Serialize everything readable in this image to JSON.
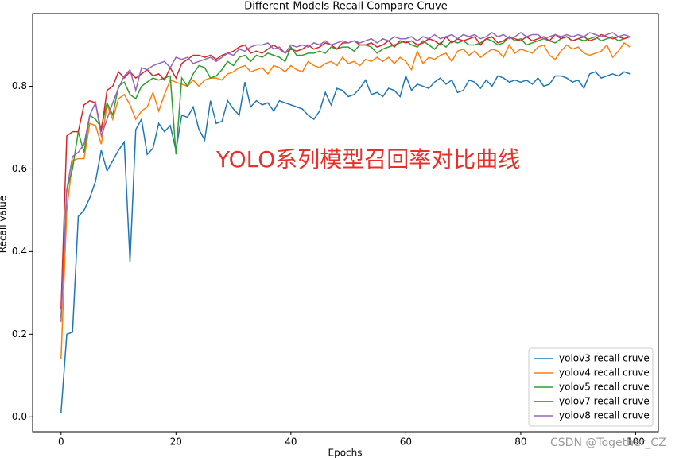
{
  "chart_data": {
    "type": "line",
    "title": "Different Models Recall Compare Cruve",
    "xlabel": "Epochs",
    "ylabel": "Recall value",
    "annotation": "YOLO系列模型召回率对比曲线",
    "watermark": "CSDN @Together_CZ",
    "legend": "lower right",
    "grid": false,
    "xlim": [
      -4.95,
      103.95
    ],
    "ylim": [
      -0.036,
      0.976
    ],
    "xticks": [
      0,
      20,
      40,
      60,
      80,
      100
    ],
    "yticks": [
      {
        "value": 0,
        "label": "0.0"
      },
      0.2,
      0.4,
      0.6,
      0.8
    ],
    "x": [
      0,
      1,
      2,
      3,
      4,
      5,
      6,
      7,
      8,
      9,
      10,
      11,
      12,
      13,
      14,
      15,
      16,
      17,
      18,
      19,
      20,
      21,
      22,
      23,
      24,
      25,
      26,
      27,
      28,
      29,
      30,
      31,
      32,
      33,
      34,
      35,
      36,
      37,
      38,
      39,
      40,
      41,
      42,
      43,
      44,
      45,
      46,
      47,
      48,
      49,
      50,
      51,
      52,
      53,
      54,
      55,
      56,
      57,
      58,
      59,
      60,
      61,
      62,
      63,
      64,
      65,
      66,
      67,
      68,
      69,
      70,
      71,
      72,
      73,
      74,
      75,
      76,
      77,
      78,
      79,
      80,
      81,
      82,
      83,
      84,
      85,
      86,
      87,
      88,
      89,
      90,
      91,
      92,
      93,
      94,
      95,
      96,
      97,
      98,
      99
    ],
    "series": [
      {
        "name": "yolov3 recall cruve",
        "color": "#1f77b4",
        "values": [
          0.01,
          0.2,
          0.205,
          0.485,
          0.5,
          0.53,
          0.57,
          0.645,
          0.595,
          0.62,
          0.645,
          0.665,
          0.375,
          0.695,
          0.72,
          0.635,
          0.65,
          0.71,
          0.69,
          0.705,
          0.645,
          0.73,
          0.725,
          0.75,
          0.695,
          0.67,
          0.765,
          0.71,
          0.715,
          0.765,
          0.745,
          0.73,
          0.81,
          0.75,
          0.765,
          0.755,
          0.76,
          0.74,
          0.765,
          0.76,
          0.755,
          0.75,
          0.745,
          0.73,
          0.72,
          0.74,
          0.785,
          0.755,
          0.795,
          0.79,
          0.775,
          0.78,
          0.795,
          0.815,
          0.78,
          0.785,
          0.775,
          0.795,
          0.79,
          0.775,
          0.825,
          0.79,
          0.805,
          0.8,
          0.795,
          0.81,
          0.82,
          0.805,
          0.815,
          0.785,
          0.79,
          0.815,
          0.81,
          0.795,
          0.815,
          0.8,
          0.825,
          0.82,
          0.81,
          0.815,
          0.81,
          0.815,
          0.805,
          0.82,
          0.8,
          0.805,
          0.825,
          0.825,
          0.82,
          0.81,
          0.815,
          0.795,
          0.83,
          0.835,
          0.82,
          0.825,
          0.83,
          0.825,
          0.835,
          0.83
        ]
      },
      {
        "name": "yolov4 recall cruve",
        "color": "#ff7f0e",
        "values": [
          0.14,
          0.5,
          0.62,
          0.625,
          0.625,
          0.71,
          0.705,
          0.66,
          0.755,
          0.72,
          0.77,
          0.78,
          0.755,
          0.72,
          0.74,
          0.75,
          0.785,
          0.74,
          0.78,
          0.815,
          0.81,
          0.805,
          0.8,
          0.815,
          0.8,
          0.815,
          0.82,
          0.82,
          0.815,
          0.83,
          0.835,
          0.845,
          0.85,
          0.835,
          0.84,
          0.845,
          0.83,
          0.85,
          0.845,
          0.835,
          0.85,
          0.84,
          0.835,
          0.86,
          0.85,
          0.845,
          0.855,
          0.86,
          0.85,
          0.87,
          0.855,
          0.86,
          0.85,
          0.865,
          0.86,
          0.87,
          0.86,
          0.87,
          0.855,
          0.87,
          0.86,
          0.84,
          0.885,
          0.855,
          0.87,
          0.865,
          0.875,
          0.88,
          0.86,
          0.885,
          0.89,
          0.875,
          0.885,
          0.87,
          0.88,
          0.89,
          0.885,
          0.87,
          0.9,
          0.88,
          0.89,
          0.885,
          0.88,
          0.895,
          0.9,
          0.875,
          0.865,
          0.885,
          0.9,
          0.89,
          0.895,
          0.88,
          0.875,
          0.88,
          0.885,
          0.9,
          0.87,
          0.885,
          0.905,
          0.895
        ]
      },
      {
        "name": "yolov5 recall cruve",
        "color": "#2ca02c",
        "values": [
          0.24,
          0.55,
          0.6,
          0.69,
          0.64,
          0.73,
          0.72,
          0.7,
          0.76,
          0.73,
          0.8,
          0.81,
          0.78,
          0.77,
          0.8,
          0.81,
          0.82,
          0.815,
          0.82,
          0.825,
          0.635,
          0.82,
          0.8,
          0.83,
          0.85,
          0.845,
          0.82,
          0.825,
          0.84,
          0.86,
          0.85,
          0.87,
          0.875,
          0.86,
          0.875,
          0.87,
          0.88,
          0.875,
          0.87,
          0.86,
          0.895,
          0.875,
          0.875,
          0.88,
          0.88,
          0.885,
          0.88,
          0.895,
          0.89,
          0.895,
          0.895,
          0.885,
          0.9,
          0.9,
          0.895,
          0.88,
          0.89,
          0.895,
          0.9,
          0.905,
          0.91,
          0.9,
          0.895,
          0.91,
          0.9,
          0.89,
          0.905,
          0.895,
          0.91,
          0.905,
          0.91,
          0.9,
          0.9,
          0.905,
          0.915,
          0.91,
          0.9,
          0.905,
          0.92,
          0.91,
          0.915,
          0.9,
          0.905,
          0.91,
          0.915,
          0.91,
          0.905,
          0.915,
          0.92,
          0.91,
          0.915,
          0.91,
          0.915,
          0.92,
          0.91,
          0.915,
          0.92,
          0.91,
          0.915,
          0.92
        ]
      },
      {
        "name": "yolov7 recall cruve",
        "color": "#d62728",
        "values": [
          0.26,
          0.68,
          0.69,
          0.69,
          0.755,
          0.765,
          0.76,
          0.69,
          0.79,
          0.8,
          0.835,
          0.82,
          0.835,
          0.82,
          0.83,
          0.84,
          0.825,
          0.83,
          0.815,
          0.845,
          0.82,
          0.855,
          0.865,
          0.875,
          0.875,
          0.87,
          0.875,
          0.865,
          0.875,
          0.88,
          0.885,
          0.895,
          0.9,
          0.88,
          0.885,
          0.88,
          0.89,
          0.9,
          0.89,
          0.88,
          0.89,
          0.885,
          0.89,
          0.9,
          0.89,
          0.895,
          0.905,
          0.9,
          0.89,
          0.905,
          0.905,
          0.91,
          0.9,
          0.9,
          0.905,
          0.895,
          0.9,
          0.91,
          0.895,
          0.91,
          0.905,
          0.91,
          0.9,
          0.905,
          0.915,
          0.91,
          0.9,
          0.92,
          0.905,
          0.915,
          0.91,
          0.915,
          0.92,
          0.9,
          0.915,
          0.92,
          0.905,
          0.91,
          0.92,
          0.915,
          0.91,
          0.92,
          0.91,
          0.915,
          0.92,
          0.91,
          0.925,
          0.915,
          0.92,
          0.91,
          0.915,
          0.92,
          0.91,
          0.915,
          0.925,
          0.92,
          0.915,
          0.92,
          0.915,
          0.92
        ]
      },
      {
        "name": "yolov8 recall cruve",
        "color": "#9467bd",
        "values": [
          0.23,
          0.55,
          0.63,
          0.64,
          0.66,
          0.73,
          0.76,
          0.68,
          0.72,
          0.76,
          0.795,
          0.825,
          0.84,
          0.79,
          0.845,
          0.84,
          0.85,
          0.855,
          0.86,
          0.845,
          0.87,
          0.865,
          0.87,
          0.855,
          0.86,
          0.865,
          0.87,
          0.86,
          0.87,
          0.88,
          0.875,
          0.89,
          0.885,
          0.895,
          0.9,
          0.9,
          0.905,
          0.89,
          0.895,
          0.88,
          0.9,
          0.895,
          0.9,
          0.895,
          0.905,
          0.9,
          0.91,
          0.9,
          0.905,
          0.91,
          0.905,
          0.91,
          0.905,
          0.91,
          0.915,
          0.905,
          0.915,
          0.91,
          0.92,
          0.915,
          0.915,
          0.92,
          0.91,
          0.92,
          0.915,
          0.925,
          0.915,
          0.92,
          0.925,
          0.915,
          0.925,
          0.92,
          0.925,
          0.915,
          0.92,
          0.93,
          0.92,
          0.925,
          0.915,
          0.92,
          0.93,
          0.92,
          0.925,
          0.925,
          0.915,
          0.92,
          0.925,
          0.92,
          0.925,
          0.92,
          0.925,
          0.92,
          0.93,
          0.925,
          0.92,
          0.925,
          0.93,
          0.92,
          0.925,
          0.92
        ]
      }
    ]
  }
}
